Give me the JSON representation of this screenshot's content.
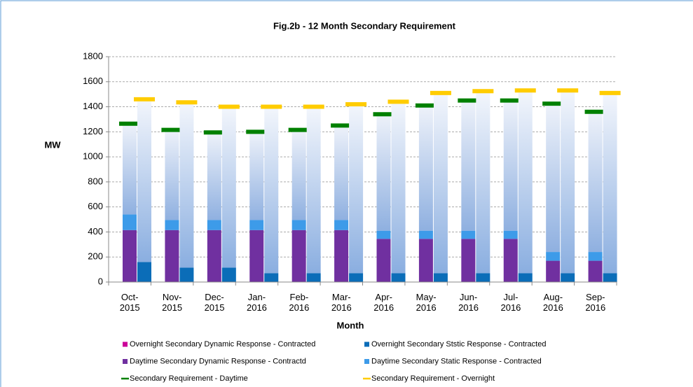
{
  "chart_data": {
    "type": "bar",
    "title": "Fig.2b - 12 Month Secondary Requirement",
    "y_label": "MW",
    "x_label": "Month",
    "categories": [
      "Oct-2015",
      "Nov-2015",
      "Dec-2015",
      "Jan-2016",
      "Feb-2016",
      "Mar-2016",
      "Apr-2016",
      "May-2016",
      "Jun-2016",
      "Jul-2016",
      "Aug-2016",
      "Sep-2016"
    ],
    "ylim": [
      0,
      1800
    ],
    "yticks": [
      0,
      200,
      400,
      600,
      800,
      1000,
      1200,
      1400,
      1600,
      1800
    ],
    "grid": true,
    "series": [
      {
        "name": "Overnight Secondary Dynamic Response - Contracted",
        "color": "#cc0099",
        "kind": "bar",
        "stack": "overnight",
        "values": [
          0,
          0,
          0,
          0,
          0,
          0,
          0,
          0,
          0,
          0,
          0,
          0
        ]
      },
      {
        "name": "Overnight Secondary Ststic Response - Contracted",
        "color": "#0b6db8",
        "kind": "bar",
        "stack": "overnight",
        "values": [
          160,
          115,
          115,
          70,
          70,
          70,
          70,
          70,
          70,
          70,
          70,
          70
        ]
      },
      {
        "name": "Daytime Secondary Dynamic Response - Contractd",
        "color": "#7030a0",
        "kind": "bar",
        "stack": "daytime",
        "values": [
          415,
          415,
          415,
          415,
          415,
          415,
          345,
          345,
          345,
          345,
          170,
          170
        ]
      },
      {
        "name": "Daytime Secondary Static Response - Contracted",
        "color": "#3d9be9",
        "kind": "bar",
        "stack": "daytime",
        "values": [
          125,
          80,
          80,
          80,
          80,
          80,
          65,
          65,
          65,
          65,
          70,
          70
        ]
      },
      {
        "name": "Secondary Requirement - Daytime",
        "color": "#008000",
        "kind": "line",
        "stack": "daytime",
        "values": [
          1265,
          1215,
          1195,
          1200,
          1215,
          1250,
          1340,
          1410,
          1450,
          1450,
          1425,
          1360
        ]
      },
      {
        "name": "Secondary Requirement - Overnight",
        "color": "#ffcc00",
        "kind": "line",
        "stack": "overnight",
        "values": [
          1460,
          1435,
          1400,
          1400,
          1400,
          1420,
          1440,
          1510,
          1525,
          1530,
          1530,
          1510
        ]
      }
    ]
  }
}
